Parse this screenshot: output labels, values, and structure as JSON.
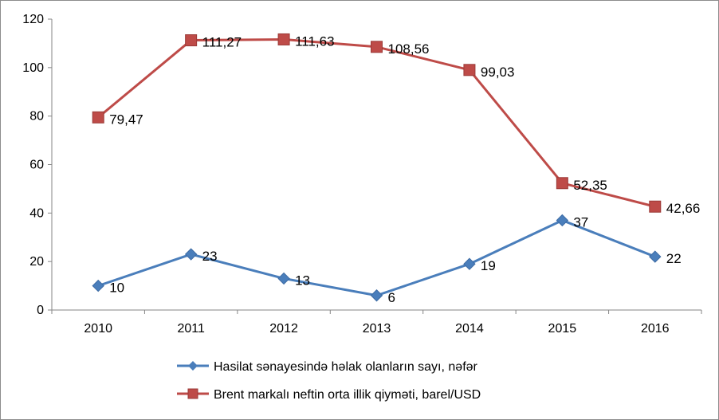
{
  "chart_data": {
    "type": "line",
    "categories": [
      "2010",
      "2011",
      "2012",
      "2013",
      "2014",
      "2015",
      "2016"
    ],
    "ylim": [
      0,
      120
    ],
    "yticks": [
      "0",
      "20",
      "40",
      "60",
      "80",
      "100",
      "120"
    ],
    "grid": false,
    "legend_position": "bottom",
    "series": [
      {
        "name": "Hasilat sənayesində həlak olanların sayı, nəfər",
        "values": [
          10,
          23,
          13,
          6,
          19,
          37,
          22
        ],
        "labels": [
          "10",
          "23",
          "13",
          "6",
          "19",
          "37",
          "22"
        ],
        "color": "#4a7ebb",
        "marker": "diamond"
      },
      {
        "name": "Brent markalı neftin orta illik qiyməti, barel/USD",
        "values": [
          79.47,
          111.27,
          111.63,
          108.56,
          99.03,
          52.35,
          42.66
        ],
        "labels": [
          "79,47",
          "111,27",
          "111,63",
          "108,56",
          "99,03",
          "52,35",
          "42,66"
        ],
        "color": "#be4b48",
        "marker": "square"
      }
    ]
  }
}
